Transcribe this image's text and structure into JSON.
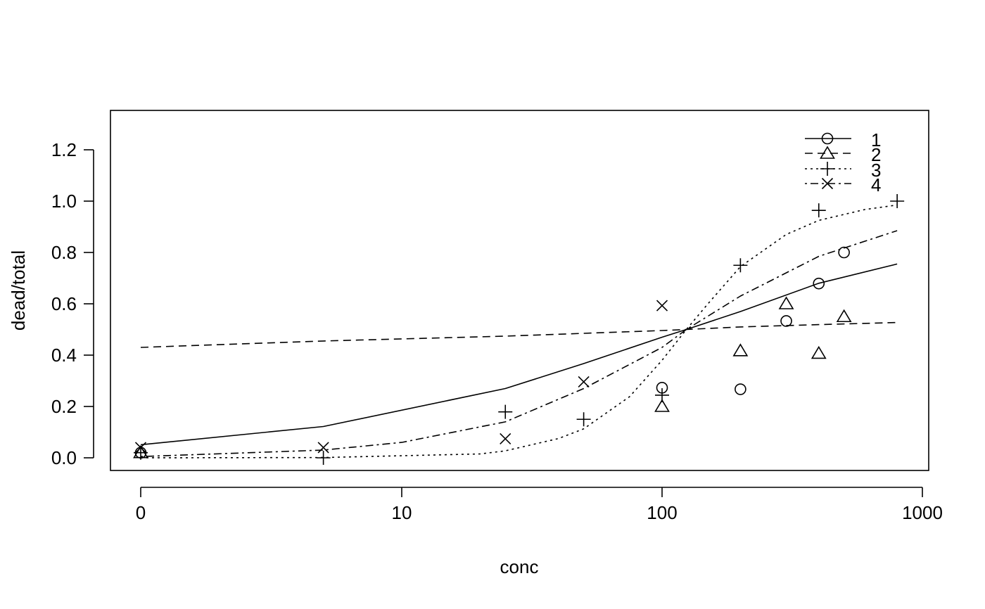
{
  "chart_data": {
    "type": "scatter",
    "title": "",
    "xlabel": "conc",
    "ylabel": "dead/total",
    "x_scale": "log",
    "x_ticks": [
      "0",
      "10",
      "100",
      "1000"
    ],
    "y_ticks": [
      "0.0",
      "0.2",
      "0.4",
      "0.6",
      "0.8",
      "1.0",
      "1.2"
    ],
    "ylim": [
      -0.04,
      1.34
    ],
    "grid": false,
    "legend_position": "top-right",
    "legend": [
      "1",
      "2",
      "3",
      "4"
    ],
    "series": [
      {
        "name": "1",
        "marker": "circle",
        "line": "solid",
        "points": [
          [
            0,
            0.02
          ],
          [
            100,
            0.273
          ],
          [
            200,
            0.267
          ],
          [
            300,
            0.533
          ],
          [
            400,
            0.679
          ],
          [
            500,
            0.8
          ]
        ],
        "curve": [
          [
            0,
            0.051
          ],
          [
            5,
            0.122
          ],
          [
            25,
            0.27
          ],
          [
            50,
            0.367
          ],
          [
            100,
            0.47
          ],
          [
            124,
            0.5
          ],
          [
            200,
            0.57
          ],
          [
            400,
            0.68
          ],
          [
            800,
            0.755
          ]
        ]
      },
      {
        "name": "2",
        "marker": "triangle",
        "line": "dashed",
        "points": [
          [
            0,
            0.02
          ],
          [
            100,
            0.2
          ],
          [
            200,
            0.417
          ],
          [
            300,
            0.6
          ],
          [
            400,
            0.407
          ],
          [
            500,
            0.55
          ]
        ],
        "curve": [
          [
            0,
            0.43
          ],
          [
            5,
            0.455
          ],
          [
            25,
            0.474
          ],
          [
            50,
            0.485
          ],
          [
            100,
            0.496
          ],
          [
            124,
            0.5
          ],
          [
            200,
            0.51
          ],
          [
            400,
            0.519
          ],
          [
            800,
            0.527
          ]
        ]
      },
      {
        "name": "3",
        "marker": "plus",
        "line": "dotted",
        "points": [
          [
            0,
            0.02
          ],
          [
            5,
            0.0
          ],
          [
            25,
            0.179
          ],
          [
            50,
            0.15
          ],
          [
            100,
            0.244
          ],
          [
            200,
            0.75
          ],
          [
            400,
            0.964
          ],
          [
            800,
            1.0
          ]
        ],
        "curve": [
          [
            0,
            0.0
          ],
          [
            5,
            0.001
          ],
          [
            20,
            0.015
          ],
          [
            25,
            0.027
          ],
          [
            40,
            0.075
          ],
          [
            50,
            0.113
          ],
          [
            75,
            0.238
          ],
          [
            100,
            0.38
          ],
          [
            124,
            0.5
          ],
          [
            150,
            0.6
          ],
          [
            200,
            0.745
          ],
          [
            300,
            0.87
          ],
          [
            400,
            0.925
          ],
          [
            600,
            0.967
          ],
          [
            800,
            0.985
          ]
        ]
      },
      {
        "name": "4",
        "marker": "cross",
        "line": "dotdash",
        "points": [
          [
            0,
            0.04
          ],
          [
            5,
            0.04
          ],
          [
            25,
            0.074
          ],
          [
            50,
            0.296
          ],
          [
            100,
            0.593
          ]
        ],
        "curve": [
          [
            0,
            0.005
          ],
          [
            5,
            0.03
          ],
          [
            10,
            0.06
          ],
          [
            25,
            0.14
          ],
          [
            50,
            0.27
          ],
          [
            100,
            0.43
          ],
          [
            124,
            0.5
          ],
          [
            200,
            0.63
          ],
          [
            400,
            0.785
          ],
          [
            800,
            0.885
          ]
        ]
      }
    ]
  }
}
